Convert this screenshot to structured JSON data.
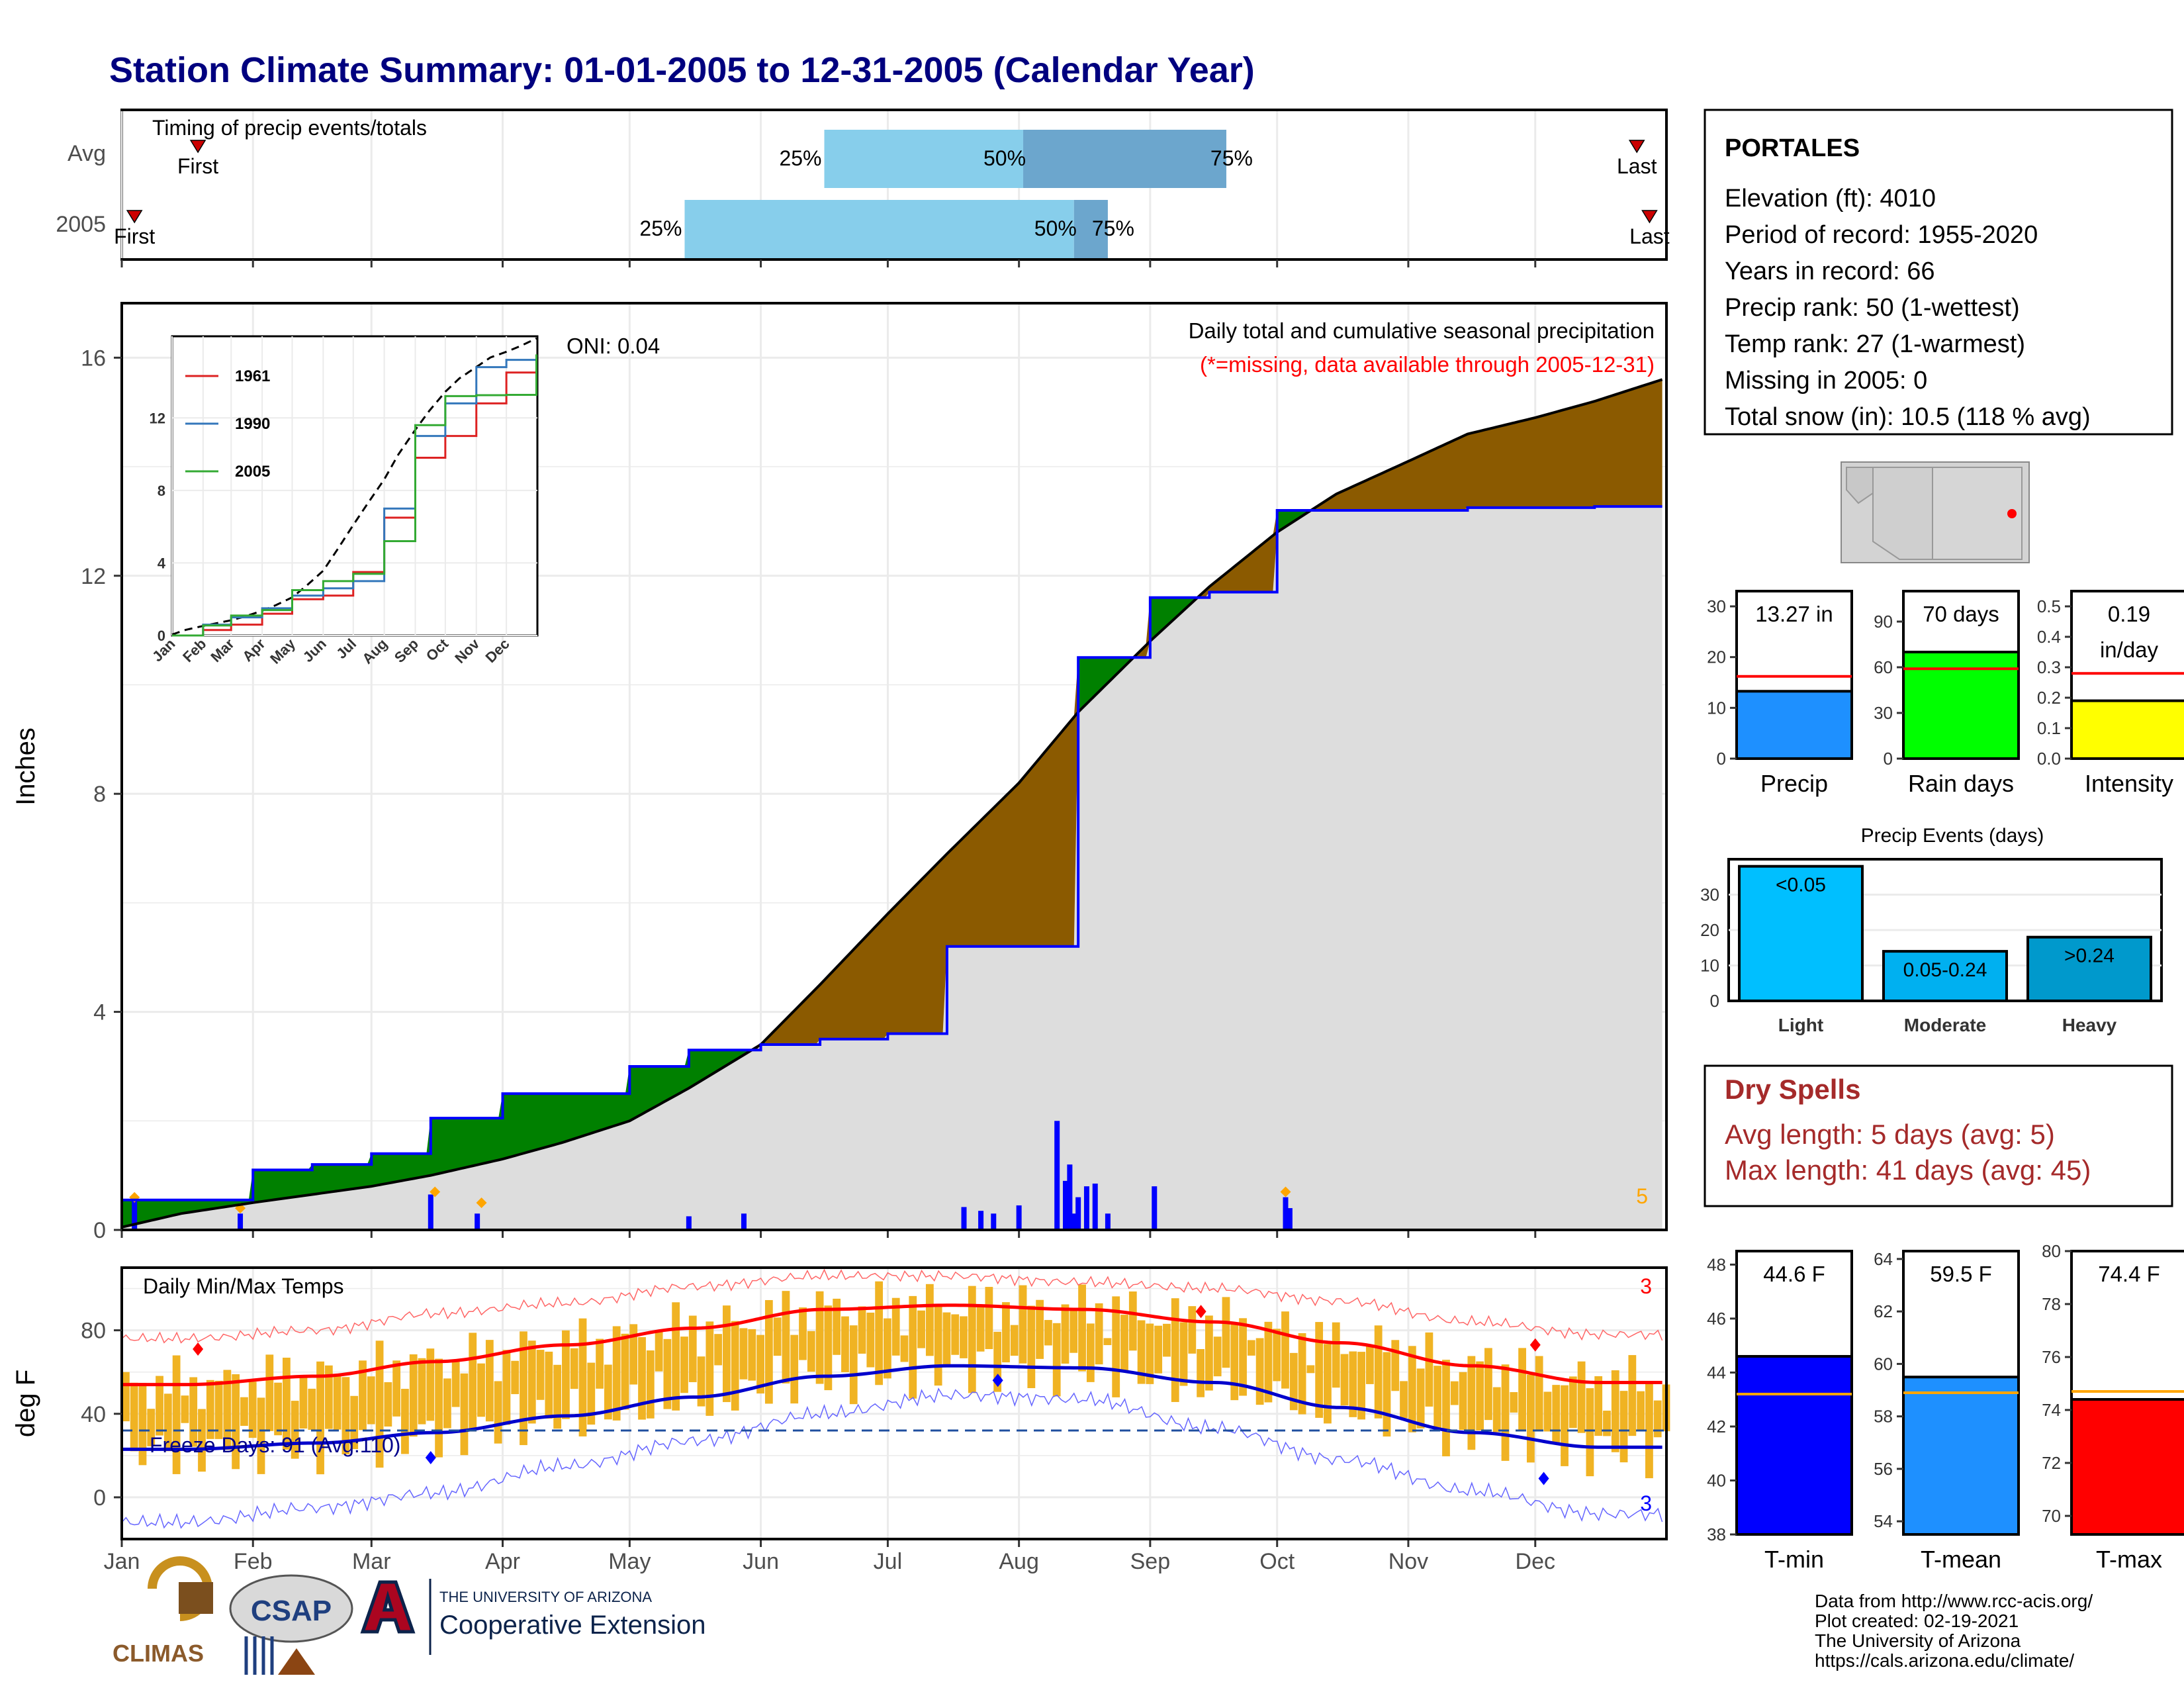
{
  "title": "Station Climate Summary: 01-01-2005 to 12-31-2005 (Calendar Year)",
  "colors": {
    "title": "#00007F",
    "above_avg": "#8B5A00",
    "below_avg": "#008000",
    "avg_fill": "#DDDDDD",
    "precip_bar": "#0000FF",
    "timing_light": "#87CEEB",
    "timing_dark": "#6CA6CD",
    "avg_temp_band": "#F0B323",
    "dry_spell": "#A52A2A",
    "tmin": "#0000FF",
    "tmean": "#1E90FF",
    "tmax": "#FF0000",
    "rain_days": "#00FF00",
    "intensity": "#FFFF00",
    "light": "#00BFFF",
    "moderate": "#00B0F0",
    "heavy": "#0099CC"
  },
  "timing": {
    "title": "Timing of precip events/totals",
    "rows": [
      {
        "label": "Avg",
        "first_label": "First",
        "last_label": "Last",
        "first_doy": 18,
        "last_doy": 358,
        "p25_doy": 166,
        "p50_doy": 213,
        "p75_doy": 261,
        "p25_label": "25%",
        "p50_label": "50%",
        "p75_label": "75%"
      },
      {
        "label": "2005",
        "first_label": "First",
        "last_label": "Last",
        "first_doy": 3,
        "last_doy": 361,
        "p25_doy": 133,
        "p50_doy": 225,
        "p75_doy": 233,
        "p25_label": "25%",
        "p50_label": "50%",
        "p75_label": "75%"
      }
    ]
  },
  "main": {
    "ylabel": "Inches",
    "title": "Daily total and cumulative seasonal precipitation",
    "subtitle": "(*=missing, data available through 2005-12-31)",
    "oni_label": "ONI: 0.04",
    "corner_count": "5",
    "y_ticks": [
      "0",
      "4",
      "8",
      "12",
      "16"
    ]
  },
  "months": [
    "Jan",
    "Feb",
    "Mar",
    "Apr",
    "May",
    "Jun",
    "Jul",
    "Aug",
    "Sep",
    "Oct",
    "Nov",
    "Dec"
  ],
  "inset": {
    "legend": [
      "1961",
      "1990",
      "2005"
    ],
    "y_ticks": [
      "0",
      "4",
      "8",
      "12"
    ],
    "months": [
      "Jan",
      "Feb",
      "Mar",
      "Apr",
      "May",
      "Jun",
      "Jul",
      "Aug",
      "Sep",
      "Oct",
      "Nov",
      "Dec"
    ]
  },
  "temps": {
    "title": "Daily Min/Max Temps",
    "ylabel": "deg F",
    "y_ticks": [
      "0",
      "40",
      "80"
    ],
    "freeze_label": "Freeze Days: 91 (Avg:110)",
    "top_count": "3",
    "bottom_count": "3"
  },
  "station": {
    "name": "PORTALES",
    "lines": [
      "Elevation (ft): 4010",
      "Period of record: 1955-2020",
      "Years in record: 66",
      "Precip rank: 50 (1-wettest)",
      "Temp rank: 27 (1-warmest)",
      "Missing in 2005: 0",
      "Total snow (in): 10.5 (118 % avg)"
    ]
  },
  "dry_spells": {
    "title": "Dry Spells",
    "avg_line": "Avg length: 5 days (avg: 5)",
    "max_line": "Max length: 41 days (avg: 45)"
  },
  "precip_events_title": "Precip Events (days)",
  "footer": {
    "lines": [
      "Data from http://www.rcc-acis.org/",
      "Plot created: 02-19-2021",
      "The University of Arizona",
      "https://cals.arizona.edu/climate/"
    ],
    "climas": "CLIMAS",
    "csap": "CSAP",
    "ua_small": "THE UNIVERSITY OF ARIZONA",
    "ua_big": "Cooperative Extension"
  },
  "chart_data": [
    {
      "type": "area",
      "id": "cumulative_precip",
      "title": "Daily total and cumulative seasonal precipitation",
      "ylabel": "Inches",
      "ylim": [
        0,
        17
      ],
      "x": [
        "2005-01-01",
        "2005-01-15",
        "2005-02-01",
        "2005-02-15",
        "2005-03-01",
        "2005-03-15",
        "2005-04-01",
        "2005-04-15",
        "2005-05-01",
        "2005-05-15",
        "2005-06-01",
        "2005-06-15",
        "2005-07-01",
        "2005-07-15",
        "2005-08-01",
        "2005-08-15",
        "2005-09-01",
        "2005-09-15",
        "2005-10-01",
        "2005-10-15",
        "2005-11-01",
        "2005-11-15",
        "2005-12-01",
        "2005-12-15",
        "2005-12-31"
      ],
      "series": [
        {
          "name": "Average",
          "values": [
            0.05,
            0.3,
            0.5,
            0.65,
            0.8,
            1.0,
            1.3,
            1.6,
            2.0,
            2.6,
            3.4,
            4.5,
            5.8,
            6.9,
            8.2,
            9.5,
            10.8,
            11.8,
            12.8,
            13.5,
            14.1,
            14.6,
            14.9,
            15.2,
            15.6
          ]
        },
        {
          "name": "2005",
          "values": [
            0.55,
            0.55,
            1.1,
            1.2,
            1.4,
            2.05,
            2.5,
            2.5,
            3.0,
            3.3,
            3.4,
            3.5,
            3.6,
            5.2,
            5.2,
            10.5,
            11.6,
            11.7,
            13.2,
            13.2,
            13.2,
            13.25,
            13.25,
            13.27,
            13.27
          ]
        }
      ]
    },
    {
      "type": "bar",
      "id": "daily_precip",
      "title": "Daily precipitation",
      "x": [
        "2005-01-04",
        "2005-01-29",
        "2005-03-15",
        "2005-03-26",
        "2005-05-15",
        "2005-05-28",
        "2005-07-19",
        "2005-07-23",
        "2005-07-26",
        "2005-08-01",
        "2005-08-10",
        "2005-08-12",
        "2005-08-13",
        "2005-08-14",
        "2005-08-15",
        "2005-08-17",
        "2005-08-19",
        "2005-08-22",
        "2005-09-02",
        "2005-10-03",
        "2005-10-04"
      ],
      "values": [
        0.55,
        0.3,
        0.65,
        0.3,
        0.25,
        0.3,
        0.42,
        0.35,
        0.3,
        0.45,
        2.0,
        0.9,
        1.2,
        0.3,
        0.6,
        0.8,
        0.85,
        0.3,
        0.8,
        0.6,
        0.4
      ]
    },
    {
      "type": "bar",
      "id": "totals",
      "categories": [
        "Precip",
        "Rain days",
        "Intensity"
      ],
      "values": [
        13.27,
        70,
        0.19
      ],
      "labels": [
        "13.27 in",
        "70 days",
        "0.19 in/day"
      ],
      "averages": [
        16.2,
        59,
        0.28
      ],
      "ylims": [
        [
          0,
          33
        ],
        [
          0,
          110
        ],
        [
          0,
          0.55
        ]
      ],
      "y_ticks": [
        [
          "0",
          "10",
          "20",
          "30"
        ],
        [
          "0",
          "30",
          "60",
          "90"
        ],
        [
          "0.0",
          "0.1",
          "0.2",
          "0.3",
          "0.4",
          "0.5"
        ]
      ]
    },
    {
      "type": "bar",
      "id": "precip_events",
      "title": "Precip Events (days)",
      "categories": [
        "Light",
        "Moderate",
        "Heavy"
      ],
      "values": [
        38,
        14,
        18
      ],
      "labels": [
        "<0.05",
        "0.05-0.24",
        ">0.24"
      ],
      "ylim": [
        0,
        40
      ],
      "y_ticks": [
        "0",
        "10",
        "20",
        "30"
      ]
    },
    {
      "type": "line",
      "id": "daily_temps",
      "title": "Daily Min/Max Temps",
      "ylabel": "deg F",
      "ylim": [
        -20,
        110
      ],
      "x_month_mid": [
        "Jan",
        "Feb",
        "Mar",
        "Apr",
        "May",
        "Jun",
        "Jul",
        "Aug",
        "Sep",
        "Oct",
        "Nov",
        "Dec"
      ],
      "series": [
        {
          "name": "Avg max",
          "values": [
            54,
            58,
            65,
            73,
            81,
            90,
            92,
            90,
            84,
            74,
            63,
            55
          ]
        },
        {
          "name": "Avg min",
          "values": [
            23,
            26,
            31,
            39,
            48,
            58,
            63,
            62,
            55,
            43,
            31,
            24
          ]
        },
        {
          "name": "Record max",
          "values": [
            76,
            80,
            88,
            93,
            101,
            106,
            106,
            103,
            100,
            94,
            84,
            78
          ]
        },
        {
          "name": "Record min",
          "values": [
            -12,
            -5,
            2,
            15,
            27,
            40,
            49,
            47,
            33,
            18,
            3,
            -8
          ]
        }
      ],
      "freeze_line": 32
    },
    {
      "type": "bar",
      "id": "temp_means",
      "categories": [
        "T-min",
        "T-mean",
        "T-max"
      ],
      "values": [
        44.6,
        59.5,
        74.4
      ],
      "labels": [
        "44.6 F",
        "59.5 F",
        "74.4 F"
      ],
      "averages": [
        43.2,
        58.9,
        74.7
      ],
      "ylims": [
        [
          38,
          48.5
        ],
        [
          53.5,
          64.3
        ],
        [
          69.3,
          80
        ]
      ],
      "y_ticks": [
        [
          "38",
          "40",
          "42",
          "44",
          "46",
          "48"
        ],
        [
          "54",
          "56",
          "58",
          "60",
          "62",
          "64"
        ],
        [
          "70",
          "72",
          "74",
          "76",
          "78",
          "80"
        ]
      ]
    }
  ]
}
